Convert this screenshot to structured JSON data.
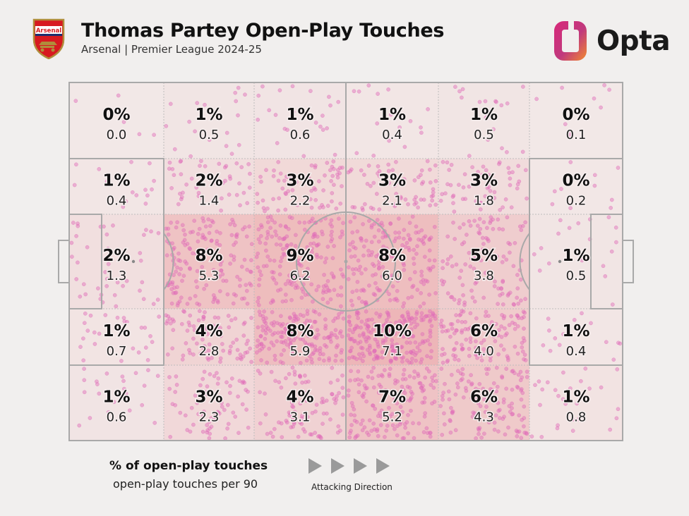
{
  "header": {
    "title": "Thomas Partey Open-Play Touches",
    "subtitle": "Arsenal | Premier League 2024-25",
    "crest_text": "Arsenal",
    "brand": "Opta"
  },
  "legend": {
    "pct_label": "% of open-play touches",
    "p90_label": "open-play touches per 90",
    "direction_label": "Attacking Direction"
  },
  "colors": {
    "background": "#f1efee",
    "dot": "#e06ab8",
    "heat": "#e8868a",
    "line": "#a9a9a9",
    "arrow": "#9a9a9a"
  },
  "chart_data": {
    "type": "heatmap",
    "title": "Thomas Partey Open-Play Touches",
    "subtitle": "Arsenal | Premier League 2024-25",
    "rows": 5,
    "cols": 6,
    "zones": [
      [
        {
          "pct": "0%",
          "p90": "0.0"
        },
        {
          "pct": "1%",
          "p90": "0.5"
        },
        {
          "pct": "1%",
          "p90": "0.6"
        },
        {
          "pct": "1%",
          "p90": "0.4"
        },
        {
          "pct": "1%",
          "p90": "0.5"
        },
        {
          "pct": "0%",
          "p90": "0.1"
        }
      ],
      [
        {
          "pct": "1%",
          "p90": "0.4"
        },
        {
          "pct": "2%",
          "p90": "1.4"
        },
        {
          "pct": "3%",
          "p90": "2.2"
        },
        {
          "pct": "3%",
          "p90": "2.1"
        },
        {
          "pct": "3%",
          "p90": "1.8"
        },
        {
          "pct": "0%",
          "p90": "0.2"
        }
      ],
      [
        {
          "pct": "2%",
          "p90": "1.3"
        },
        {
          "pct": "8%",
          "p90": "5.3"
        },
        {
          "pct": "9%",
          "p90": "6.2"
        },
        {
          "pct": "8%",
          "p90": "6.0"
        },
        {
          "pct": "5%",
          "p90": "3.8"
        },
        {
          "pct": "1%",
          "p90": "0.5"
        }
      ],
      [
        {
          "pct": "1%",
          "p90": "0.7"
        },
        {
          "pct": "4%",
          "p90": "2.8"
        },
        {
          "pct": "8%",
          "p90": "5.9"
        },
        {
          "pct": "10%",
          "p90": "7.1"
        },
        {
          "pct": "6%",
          "p90": "4.0"
        },
        {
          "pct": "1%",
          "p90": "0.4"
        }
      ],
      [
        {
          "pct": "1%",
          "p90": "0.6"
        },
        {
          "pct": "3%",
          "p90": "2.3"
        },
        {
          "pct": "4%",
          "p90": "3.1"
        },
        {
          "pct": "7%",
          "p90": "5.2"
        },
        {
          "pct": "6%",
          "p90": "4.3"
        },
        {
          "pct": "1%",
          "p90": "0.8"
        }
      ]
    ],
    "legend": [
      "% of open-play touches",
      "open-play touches per 90"
    ],
    "annotation": "Attacking Direction"
  }
}
